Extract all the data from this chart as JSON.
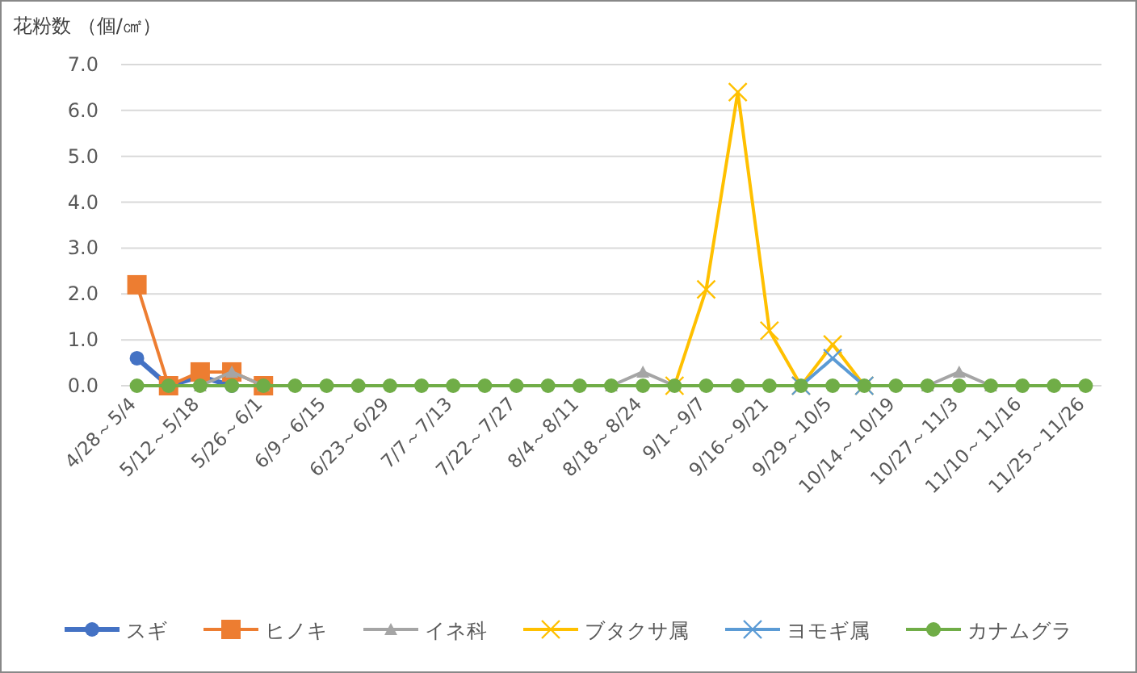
{
  "chart_data": {
    "type": "line",
    "ylabel": "花粉数 （個/㎠）",
    "categories": [
      "4/28～5/4",
      null,
      "5/12～5/18",
      null,
      "5/26～6/1",
      null,
      "6/9～6/15",
      null,
      "6/23～6/29",
      null,
      "7/7～7/13",
      null,
      "7/22～7/27",
      null,
      "8/4～8/11",
      null,
      "8/18～8/24",
      null,
      "9/1～9/7",
      null,
      "9/16～9/21",
      null,
      "9/29～10/5",
      null,
      "10/14～10/19",
      null,
      "10/27～11/3",
      null,
      "11/10～11/16",
      null,
      "11/25～11/26"
    ],
    "ylim": [
      0,
      7
    ],
    "yticks": [
      {
        "value": 0,
        "label": "0.0"
      },
      {
        "value": 1,
        "label": "1.0"
      },
      {
        "value": 2,
        "label": "2.0"
      },
      {
        "value": 3,
        "label": "3.0"
      },
      {
        "value": 4,
        "label": "4.0"
      },
      {
        "value": 5,
        "label": "5.0"
      },
      {
        "value": 6,
        "label": "6.0"
      },
      {
        "value": 7,
        "label": "7.0"
      }
    ],
    "grid": "y",
    "legend": "bottom",
    "series": [
      {
        "name": "スギ",
        "color": "#4472c4",
        "marker": "circle",
        "values": [
          0.6,
          0,
          0.2,
          0,
          null,
          null,
          null,
          null,
          null,
          null,
          null,
          null,
          null,
          null,
          null,
          null,
          null,
          null,
          null,
          null,
          null,
          null,
          null,
          null,
          null,
          null,
          null,
          null,
          null,
          null,
          null
        ]
      },
      {
        "name": "ヒノキ",
        "color": "#ed7d31",
        "marker": "square",
        "values": [
          2.2,
          0,
          0.3,
          0.3,
          0,
          null,
          null,
          null,
          null,
          null,
          null,
          null,
          null,
          null,
          null,
          null,
          null,
          null,
          null,
          null,
          null,
          null,
          null,
          null,
          null,
          null,
          null,
          null,
          null,
          null,
          null
        ]
      },
      {
        "name": "イネ科",
        "color": "#a5a5a5",
        "marker": "triangle",
        "values": [
          null,
          null,
          0,
          0.3,
          0,
          null,
          null,
          null,
          null,
          null,
          null,
          null,
          null,
          null,
          null,
          0,
          0.3,
          0,
          null,
          null,
          null,
          null,
          null,
          null,
          null,
          0,
          0.3,
          0,
          null,
          null,
          null
        ]
      },
      {
        "name": "ブタクサ属",
        "color": "#ffc000",
        "marker": "cross",
        "values": [
          null,
          null,
          null,
          null,
          null,
          null,
          null,
          null,
          null,
          null,
          null,
          null,
          null,
          null,
          null,
          null,
          null,
          0,
          2.1,
          6.4,
          1.2,
          0,
          0.9,
          0,
          null,
          null,
          null,
          null,
          null,
          null,
          null
        ]
      },
      {
        "name": "ヨモギ属",
        "color": "#5b9bd5",
        "marker": "cross",
        "values": [
          null,
          null,
          null,
          null,
          null,
          null,
          null,
          null,
          null,
          null,
          null,
          null,
          null,
          null,
          null,
          null,
          null,
          null,
          null,
          null,
          null,
          0,
          0.6,
          0,
          null,
          null,
          null,
          null,
          null,
          null,
          null
        ]
      },
      {
        "name": "カナムグラ",
        "color": "#70ad47",
        "marker": "circle",
        "values": [
          0,
          0,
          0,
          0,
          0,
          0,
          0,
          0,
          0,
          0,
          0,
          0,
          0,
          0,
          0,
          0,
          0,
          0,
          0,
          0,
          0,
          0,
          0,
          0,
          0,
          0,
          0,
          0,
          0,
          0,
          0
        ]
      }
    ]
  }
}
